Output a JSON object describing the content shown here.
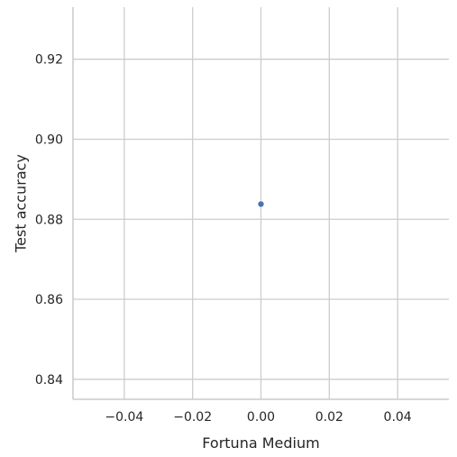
{
  "chart_data": {
    "type": "scatter",
    "xlabel": "Fortuna Medium",
    "ylabel": "Test accuracy",
    "xlim": [
      -0.055,
      0.055
    ],
    "ylim": [
      0.835,
      0.933
    ],
    "x_ticks": [
      -0.04,
      -0.02,
      0.0,
      0.02,
      0.04
    ],
    "x_tick_labels": [
      "−0.04",
      "−0.02",
      "0.00",
      "0.02",
      "0.04"
    ],
    "y_ticks": [
      0.84,
      0.86,
      0.88,
      0.9,
      0.92
    ],
    "y_tick_labels": [
      "0.84",
      "0.86",
      "0.88",
      "0.90",
      "0.92"
    ],
    "grid": true,
    "points": [
      {
        "x": 0.0,
        "y": 0.8838
      }
    ],
    "colors": {
      "point": "#4c72b0",
      "grid": "#cccccc",
      "text": "#262626"
    }
  }
}
